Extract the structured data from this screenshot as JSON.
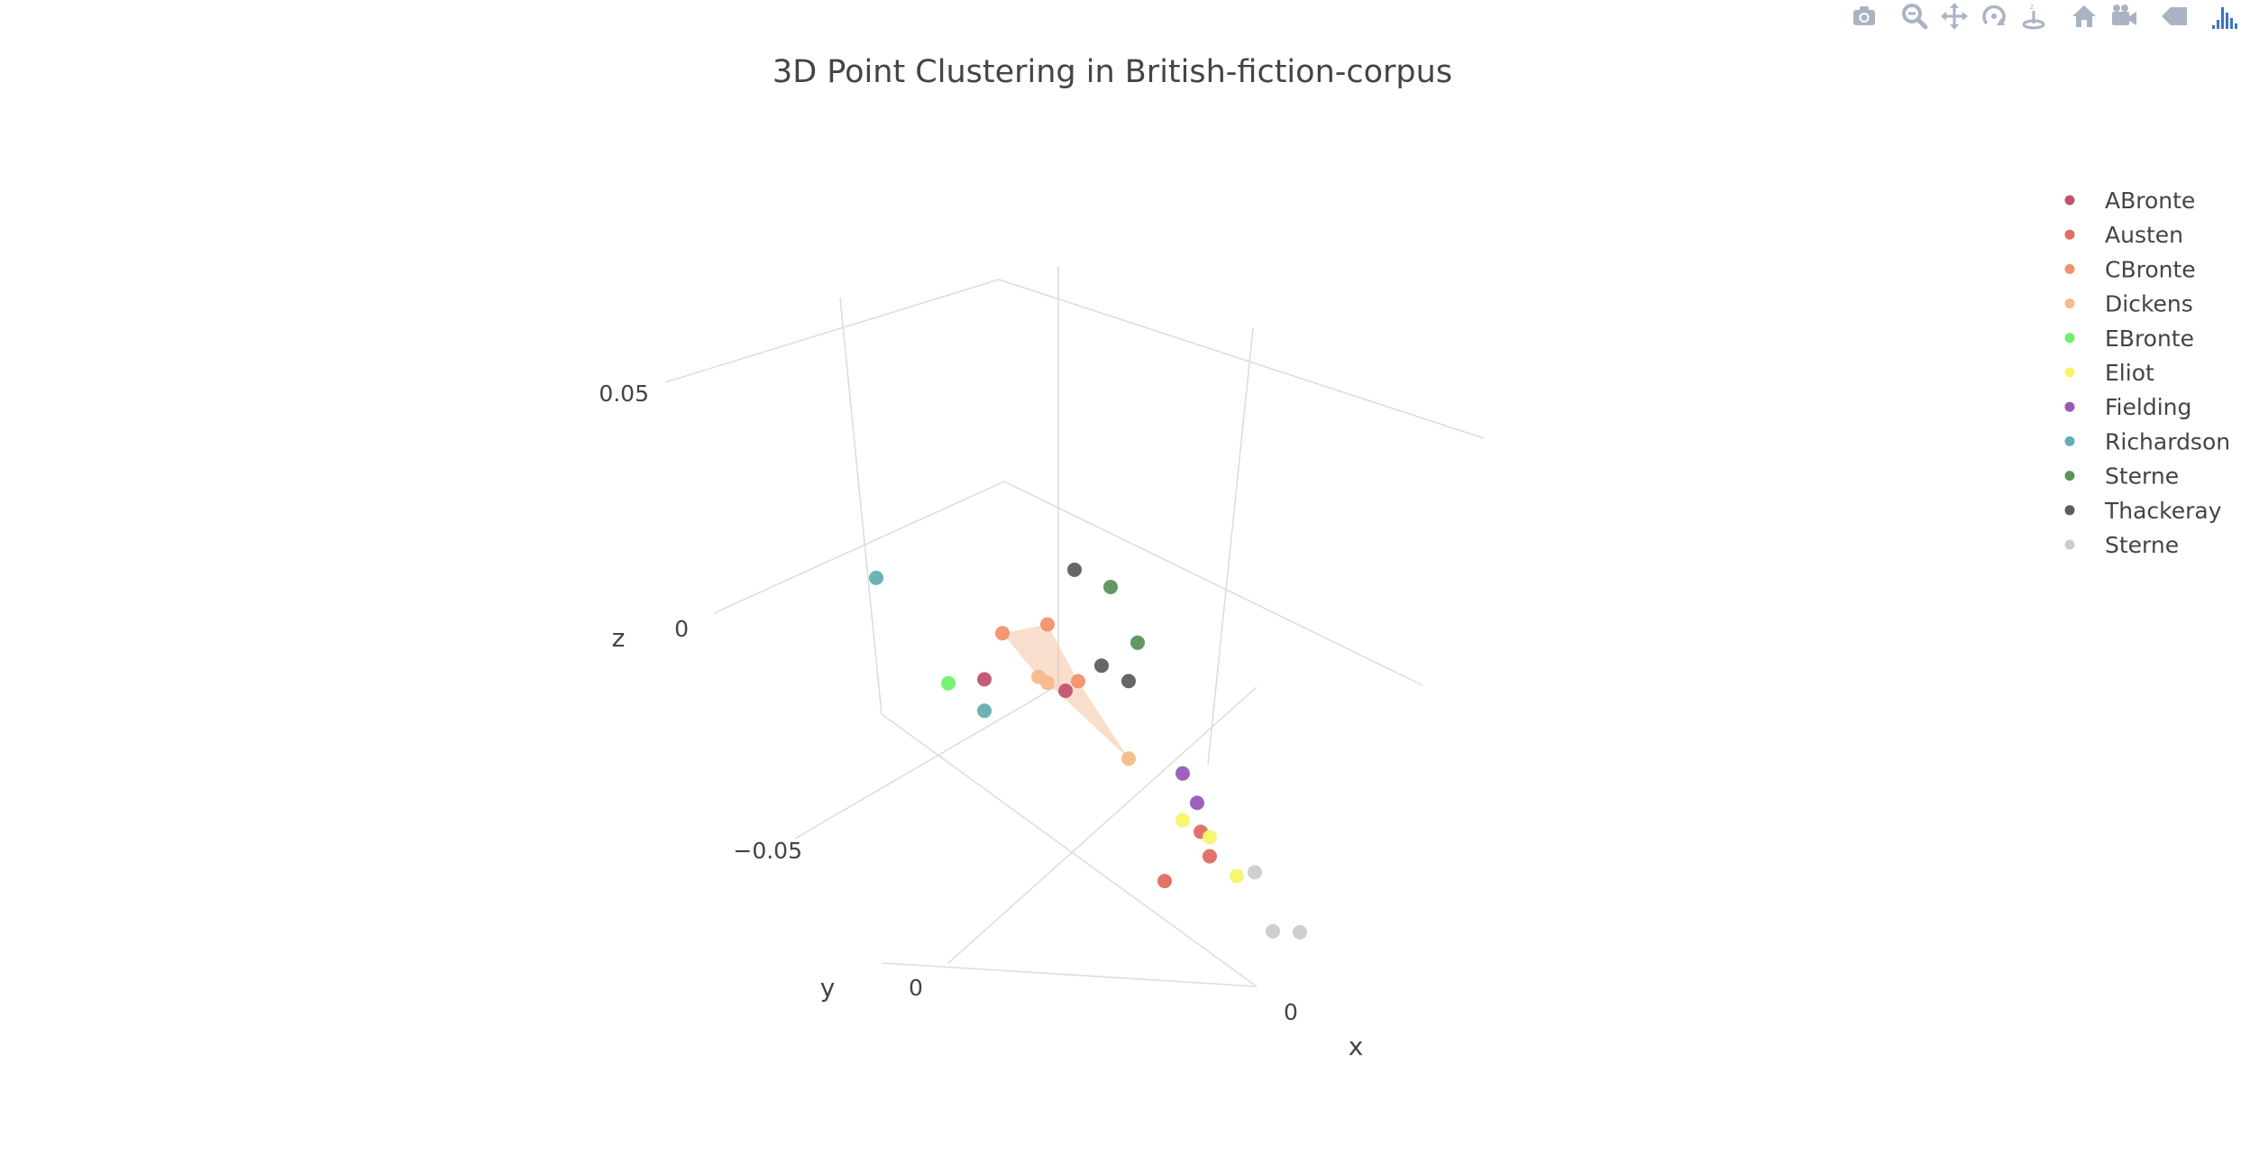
{
  "modebar": {
    "buttons": [
      "camera-icon",
      "zoom-icon",
      "pan-icon",
      "orbit-icon",
      "turntable-icon",
      "home-icon",
      "camera-view-icon",
      "hover-icon",
      "plotly-logo-icon"
    ]
  },
  "chart_data": {
    "type": "scatter3d",
    "title": "3D Point Clustering in British-fiction-corpus",
    "axes": {
      "x": {
        "title": "x",
        "ticks": [
          "0"
        ]
      },
      "y": {
        "title": "y",
        "ticks": [
          "0"
        ]
      },
      "z": {
        "title": "z",
        "ticks": [
          "0.05",
          "0",
          "−0.05"
        ],
        "range": [
          -0.08,
          0.08
        ]
      }
    },
    "legend_position": "top-right",
    "series": [
      {
        "name": "ABronte",
        "color": "#c2536e",
        "points": [
          [
            -0.03,
            -0.02,
            -0.028
          ],
          [
            -0.01,
            -0.025,
            -0.022
          ]
        ]
      },
      {
        "name": "Austen",
        "color": "#e06c63",
        "points": [
          [
            0.015,
            -0.03,
            -0.062
          ],
          [
            0.025,
            -0.035,
            -0.052
          ],
          [
            0.02,
            -0.04,
            -0.051
          ]
        ]
      },
      {
        "name": "CBronte",
        "color": "#f2916e",
        "points": [
          [
            -0.005,
            -0.005,
            0.01
          ],
          [
            0.005,
            -0.002,
            0.002
          ],
          [
            -0.02,
            -0.01,
            -0.004
          ]
        ]
      },
      {
        "name": "Dickens",
        "color": "#f7b98a",
        "points": [
          [
            -0.01,
            -0.01,
            -0.01
          ],
          [
            -0.005,
            -0.005,
            -0.006
          ],
          [
            0.01,
            -0.02,
            -0.026
          ]
        ]
      },
      {
        "name": "EBronte",
        "color": "#6ef26e",
        "points": [
          [
            -0.04,
            -0.02,
            -0.035
          ]
        ]
      },
      {
        "name": "Eliot",
        "color": "#f6f56a",
        "points": [
          [
            0.025,
            -0.02,
            -0.034
          ],
          [
            0.035,
            -0.015,
            -0.03
          ],
          [
            0.045,
            -0.01,
            -0.032
          ]
        ]
      },
      {
        "name": "Fielding",
        "color": "#9b59b6",
        "points": [
          [
            0.04,
            0.01,
            0.004
          ],
          [
            0.045,
            0.012,
            0.0
          ]
        ]
      },
      {
        "name": "Richardson",
        "color": "#64afb0",
        "points": [
          [
            -0.06,
            -0.02,
            -0.018
          ],
          [
            -0.035,
            -0.03,
            -0.045
          ]
        ]
      },
      {
        "name": "Sterne",
        "color": "#5a935a",
        "points": [
          [
            0.03,
            0.03,
            0.06
          ],
          [
            0.035,
            0.025,
            0.045
          ]
        ]
      },
      {
        "name": "Thackeray",
        "color": "#5e5e5e",
        "points": [
          [
            0.01,
            0.01,
            0.042
          ],
          [
            0.015,
            0.005,
            0.016
          ],
          [
            0.02,
            0.0,
            0.012
          ]
        ]
      },
      {
        "name": "Sterne",
        "color": "#cccccc",
        "points": [
          [
            0.05,
            -0.01,
            -0.028
          ],
          [
            0.045,
            -0.03,
            -0.058
          ],
          [
            0.05,
            -0.035,
            -0.058
          ]
        ]
      }
    ],
    "hull": {
      "series": "Dickens",
      "color": "#f3c4a4",
      "opacity": 0.55
    }
  }
}
